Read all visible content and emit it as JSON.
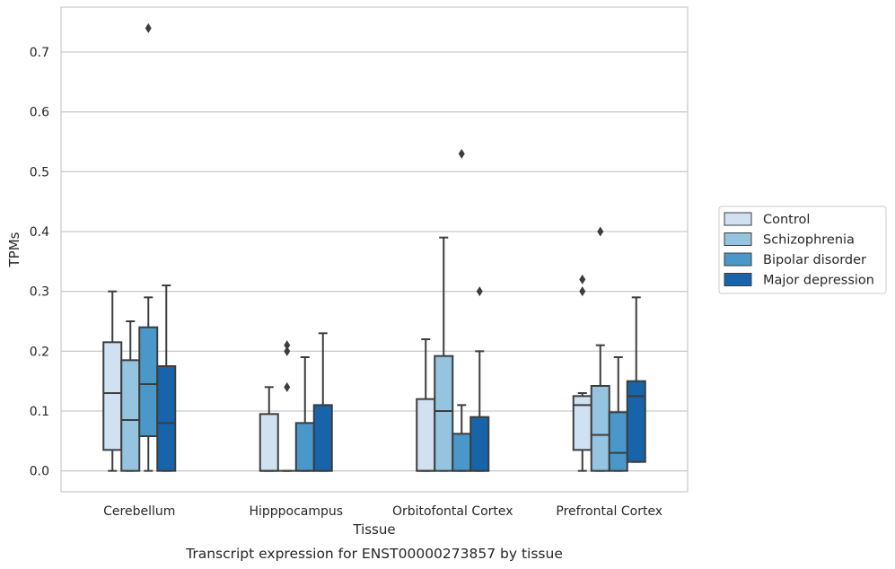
{
  "chart_data": {
    "type": "box",
    "caption": "Transcript expression for ENST00000273857 by tissue",
    "xlabel": "Tissue",
    "ylabel": "TPMs",
    "ylim": [
      -0.035,
      0.775
    ],
    "yticks": [
      0.0,
      0.1,
      0.2,
      0.3,
      0.4,
      0.5,
      0.6,
      0.7
    ],
    "ytick_labels": [
      "0.0",
      "0.1",
      "0.2",
      "0.3",
      "0.4",
      "0.5",
      "0.6",
      "0.7"
    ],
    "grid": "horizontal",
    "legend_position": "right",
    "categories": [
      "Cerebellum",
      "Hipppocampus",
      "Orbitofontal Cortex",
      "Prefrontal Cortex"
    ],
    "series": [
      {
        "name": "Control",
        "color": "#d0e1f2",
        "boxes": [
          {
            "whislo": 0.0,
            "q1": 0.035,
            "med": 0.13,
            "q3": 0.215,
            "whishi": 0.3,
            "fliers": []
          },
          {
            "whislo": 0.0,
            "q1": 0.0,
            "med": 0.0,
            "q3": 0.095,
            "whishi": 0.14,
            "fliers": []
          },
          {
            "whislo": 0.0,
            "q1": 0.0,
            "med": 0.0,
            "q3": 0.12,
            "whishi": 0.22,
            "fliers": []
          },
          {
            "whislo": 0.0,
            "q1": 0.035,
            "med": 0.11,
            "q3": 0.125,
            "whishi": 0.13,
            "fliers": [
              0.3,
              0.32
            ]
          }
        ]
      },
      {
        "name": "Schizophrenia",
        "color": "#94c4df",
        "boxes": [
          {
            "whislo": 0.0,
            "q1": 0.0,
            "med": 0.085,
            "q3": 0.185,
            "whishi": 0.25,
            "fliers": []
          },
          {
            "whislo": 0.0,
            "q1": 0.0,
            "med": 0.0,
            "q3": 0.0,
            "whishi": 0.0,
            "fliers": [
              0.14,
              0.2,
              0.21
            ]
          },
          {
            "whislo": 0.0,
            "q1": 0.0,
            "med": 0.1,
            "q3": 0.192,
            "whishi": 0.39,
            "fliers": []
          },
          {
            "whislo": 0.0,
            "q1": 0.0,
            "med": 0.06,
            "q3": 0.142,
            "whishi": 0.21,
            "fliers": [
              0.4
            ]
          }
        ]
      },
      {
        "name": "Bipolar disorder",
        "color": "#4a98c9",
        "boxes": [
          {
            "whislo": 0.0,
            "q1": 0.058,
            "med": 0.145,
            "q3": 0.24,
            "whishi": 0.29,
            "fliers": [
              0.74
            ]
          },
          {
            "whislo": 0.0,
            "q1": 0.0,
            "med": 0.0,
            "q3": 0.08,
            "whishi": 0.19,
            "fliers": []
          },
          {
            "whislo": 0.0,
            "q1": 0.0,
            "med": 0.0,
            "q3": 0.062,
            "whishi": 0.11,
            "fliers": [
              0.53
            ]
          },
          {
            "whislo": 0.0,
            "q1": 0.0,
            "med": 0.03,
            "q3": 0.098,
            "whishi": 0.19,
            "fliers": []
          }
        ]
      },
      {
        "name": "Major depression",
        "color": "#1764ab",
        "boxes": [
          {
            "whislo": 0.0,
            "q1": 0.0,
            "med": 0.08,
            "q3": 0.175,
            "whishi": 0.31,
            "fliers": []
          },
          {
            "whislo": 0.0,
            "q1": 0.0,
            "med": 0.0,
            "q3": 0.11,
            "whishi": 0.23,
            "fliers": []
          },
          {
            "whislo": 0.0,
            "q1": 0.0,
            "med": 0.0,
            "q3": 0.09,
            "whishi": 0.2,
            "fliers": [
              0.3
            ]
          },
          {
            "whislo": 0.015,
            "q1": 0.015,
            "med": 0.125,
            "q3": 0.15,
            "whishi": 0.29,
            "fliers": []
          }
        ]
      }
    ]
  }
}
